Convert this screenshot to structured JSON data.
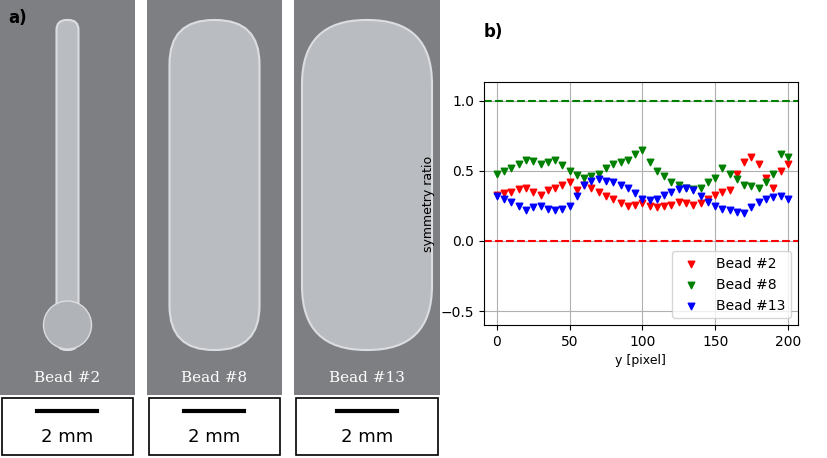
{
  "panel_labels": [
    "a)",
    "b)"
  ],
  "panel_a": {
    "images": [
      {
        "caption": "Bead #2",
        "scale_bar": "2 mm"
      },
      {
        "caption": "Bead #8",
        "scale_bar": "2 mm"
      },
      {
        "caption": "Bead #13",
        "scale_bar": "2 mm"
      }
    ]
  },
  "chart_data": {
    "type": "scatter",
    "x_label": "y [pixel]",
    "y_label": "symmetry ratio",
    "x": [
      0,
      5,
      10,
      15,
      20,
      25,
      30,
      35,
      40,
      45,
      50,
      55,
      60,
      65,
      70,
      75,
      80,
      85,
      90,
      95,
      100,
      105,
      110,
      115,
      120,
      125,
      130,
      135,
      140,
      145,
      150,
      155,
      160,
      165,
      170,
      175,
      180,
      185,
      190,
      195,
      200
    ],
    "series": [
      {
        "name": "Bead #2",
        "color": "red",
        "marker": "v",
        "values": [
          0.33,
          0.34,
          0.35,
          0.37,
          0.38,
          0.35,
          0.33,
          0.36,
          0.38,
          0.4,
          0.42,
          0.36,
          0.4,
          0.38,
          0.35,
          0.32,
          0.3,
          0.27,
          0.25,
          0.26,
          0.27,
          0.25,
          0.24,
          0.25,
          0.26,
          0.28,
          0.27,
          0.26,
          0.27,
          0.3,
          0.33,
          0.35,
          0.36,
          0.48,
          0.56,
          0.6,
          0.55,
          0.45,
          0.38,
          0.5,
          0.55
        ]
      },
      {
        "name": "Bead #8",
        "color": "green",
        "marker": "v",
        "values": [
          0.48,
          0.5,
          0.52,
          0.55,
          0.58,
          0.57,
          0.55,
          0.56,
          0.58,
          0.54,
          0.5,
          0.47,
          0.45,
          0.46,
          0.48,
          0.52,
          0.55,
          0.56,
          0.58,
          0.62,
          0.65,
          0.56,
          0.5,
          0.46,
          0.42,
          0.4,
          0.38,
          0.37,
          0.38,
          0.42,
          0.45,
          0.52,
          0.48,
          0.44,
          0.4,
          0.39,
          0.38,
          0.42,
          0.48,
          0.62,
          0.6
        ]
      },
      {
        "name": "Bead #13",
        "color": "blue",
        "marker": "v",
        "values": [
          0.32,
          0.3,
          0.28,
          0.25,
          0.22,
          0.24,
          0.25,
          0.23,
          0.22,
          0.23,
          0.25,
          0.32,
          0.4,
          0.43,
          0.44,
          0.43,
          0.42,
          0.4,
          0.38,
          0.34,
          0.3,
          0.29,
          0.3,
          0.33,
          0.35,
          0.37,
          0.38,
          0.36,
          0.32,
          0.28,
          0.25,
          0.23,
          0.22,
          0.21,
          0.2,
          0.24,
          0.28,
          0.3,
          0.31,
          0.32,
          0.3
        ]
      }
    ],
    "reference_lines": [
      {
        "value": 1.0,
        "color": "green",
        "line_style": "dashed"
      },
      {
        "value": 0.0,
        "color": "red",
        "line_style": "dashed"
      }
    ],
    "xlim": [
      -9,
      207
    ],
    "xticks": [
      0,
      50,
      100,
      150,
      200
    ],
    "ylim": [
      -0.6,
      1.13
    ],
    "yticks": [
      {
        "value": -0.5,
        "label": "−0.5"
      },
      0.0,
      0.5,
      1.0
    ],
    "grid": true,
    "legend": "lower right"
  }
}
